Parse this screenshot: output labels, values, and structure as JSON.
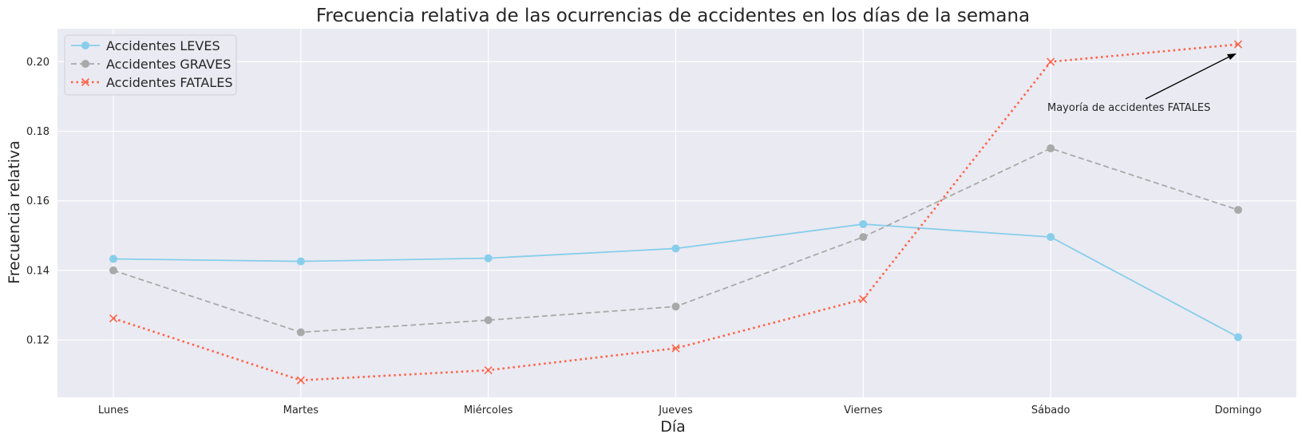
{
  "chart_data": {
    "type": "line",
    "title": "Frecuencia relativa de las ocurrencias de accidentes en los días de la semana",
    "xlabel": "Día",
    "ylabel": "Frecuencia relativa",
    "categories": [
      "Lunes",
      "Martes",
      "Miércoles",
      "Jueves",
      "Viernes",
      "Sábado",
      "Domingo"
    ],
    "ylim": [
      0.1035,
      0.2095
    ],
    "yticks": [
      0.12,
      0.14,
      0.16,
      0.18,
      0.2
    ],
    "ytick_labels": [
      "0.12",
      "0.14",
      "0.16",
      "0.18",
      "0.20"
    ],
    "grid": true,
    "legend_position": "top-left",
    "background_color": "#eaeaf2",
    "grid_color": "#ffffff",
    "series": [
      {
        "name": "Accidentes LEVES",
        "values": [
          0.1433,
          0.1426,
          0.1435,
          0.1463,
          0.1533,
          0.1496,
          0.1208
        ],
        "color": "#87ceeb",
        "line_style": "solid",
        "marker": "circle"
      },
      {
        "name": "Accidentes GRAVES",
        "values": [
          0.14,
          0.1222,
          0.1257,
          0.1296,
          0.1496,
          0.1751,
          0.1574
        ],
        "color": "#a9a9a9",
        "line_style": "dashed",
        "marker": "circle"
      },
      {
        "name": "Accidentes FATALES",
        "values": [
          0.1262,
          0.1084,
          0.1113,
          0.1176,
          0.1317,
          0.2,
          0.205
        ],
        "color": "#ff6347",
        "line_style": "dotted",
        "marker": "x"
      }
    ],
    "annotations": [
      {
        "text": "Mayoría de accidentes FATALES",
        "arrow_to_x": "Domingo",
        "arrow_to_y": 0.202
      }
    ]
  }
}
